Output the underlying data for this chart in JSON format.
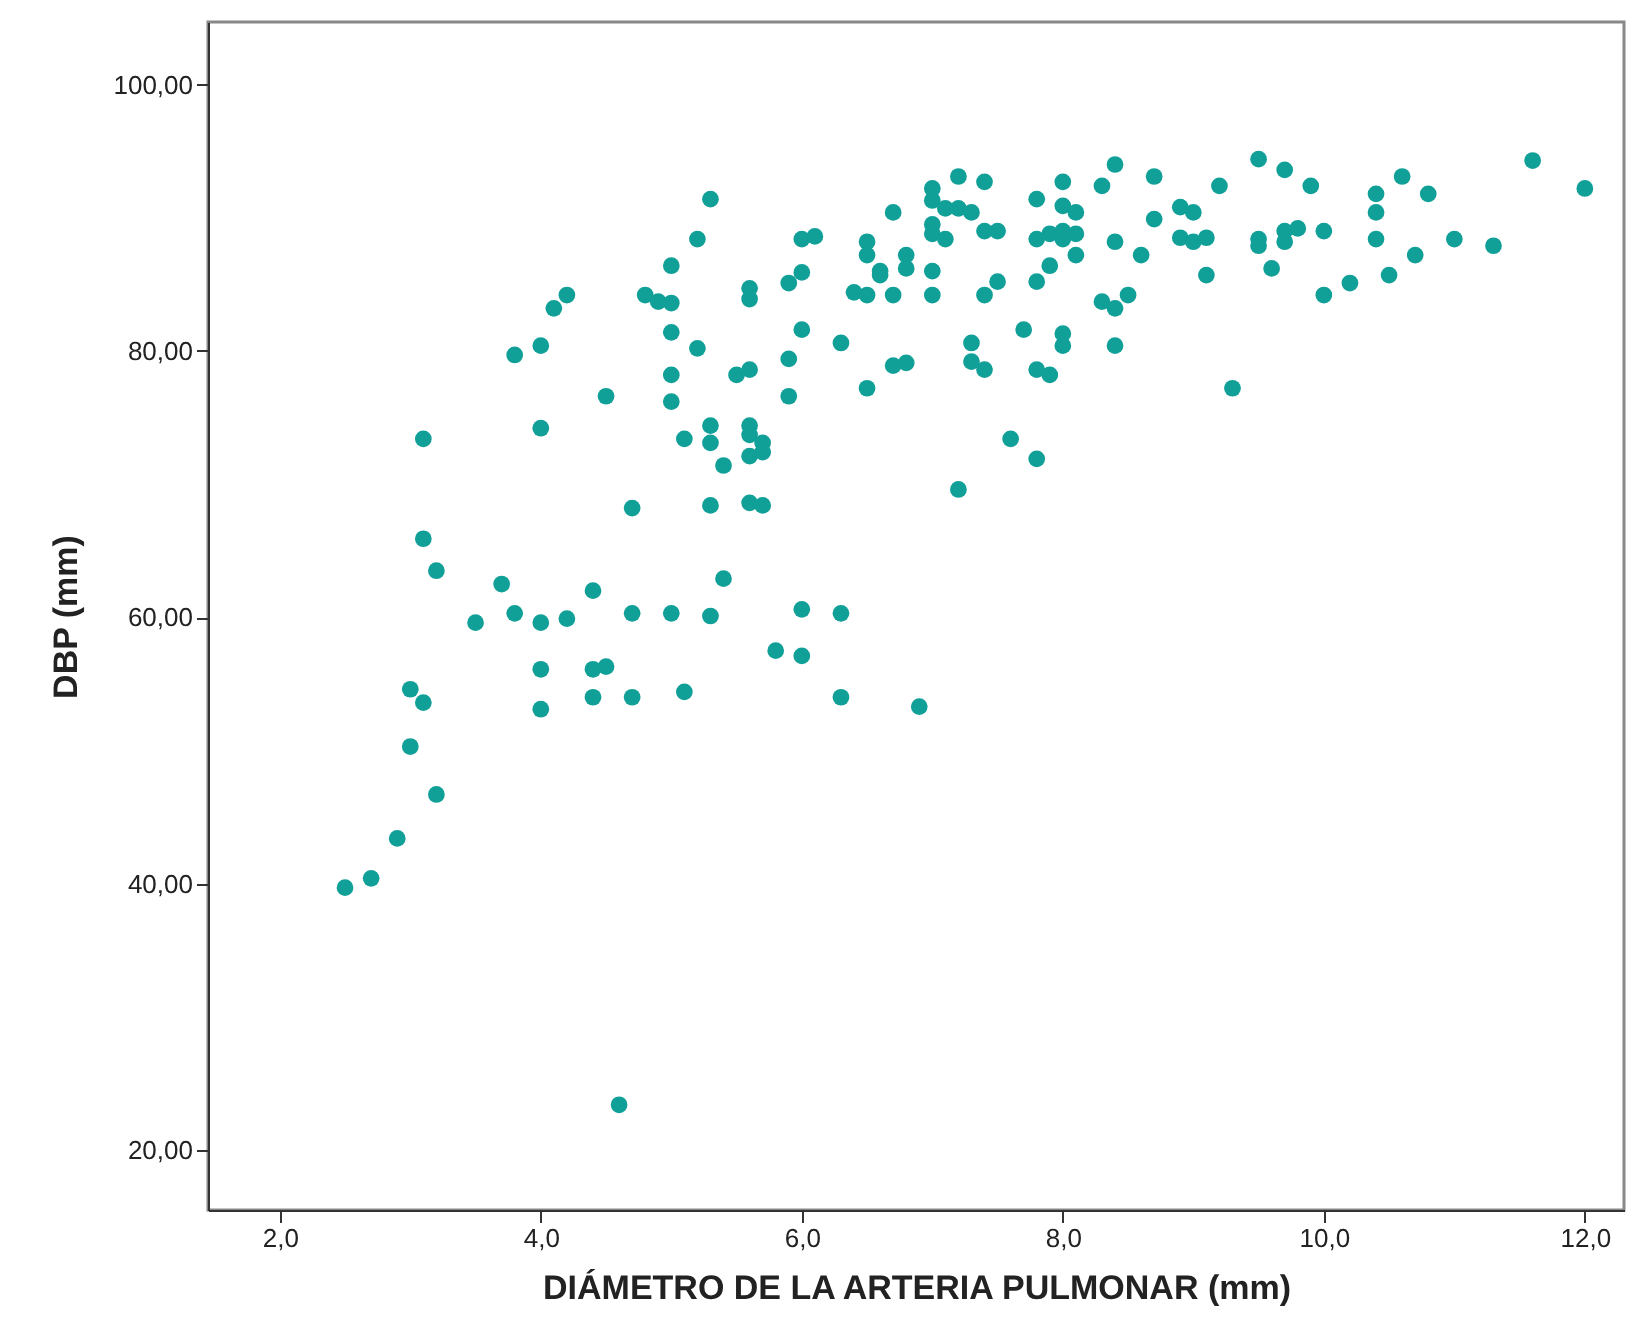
{
  "chart_data": {
    "type": "scatter",
    "xlabel": "DIÁMETRO DE LA ARTERIA PULMONAR (mm)",
    "ylabel": "DBP (mm)",
    "xlim": [
      1.45,
      12.3
    ],
    "ylim": [
      15.5,
      104.7
    ],
    "xticks": [
      {
        "value": 2,
        "label": "2,0"
      },
      {
        "value": 4,
        "label": "4,0"
      },
      {
        "value": 6,
        "label": "6,0"
      },
      {
        "value": 8,
        "label": "8,0"
      },
      {
        "value": 10,
        "label": "10,0"
      },
      {
        "value": 12,
        "label": "12,0"
      }
    ],
    "yticks": [
      {
        "value": 20,
        "label": "20,00"
      },
      {
        "value": 40,
        "label": "40,00"
      },
      {
        "value": 60,
        "label": "60,00"
      },
      {
        "value": 80,
        "label": "80,00"
      },
      {
        "value": 100,
        "label": "100,00"
      }
    ],
    "grid": false,
    "marker": "circle",
    "series": [
      {
        "color": "#10a098",
        "x": [
          5.3,
          5.2,
          5.0,
          4.2,
          4.1,
          4.8,
          4.9,
          5.0,
          5.6,
          5.6,
          6.0,
          6.1,
          5.9,
          6.0,
          6.5,
          6.5,
          6.6,
          6.7,
          6.8,
          6.8,
          6.4,
          6.5,
          6.7,
          3.8,
          4.0,
          5.0,
          5.2,
          6.0,
          6.3,
          4.5,
          5.0,
          5.0,
          5.5,
          5.6,
          5.9,
          5.9,
          6.5,
          6.7,
          6.8,
          4.0,
          3.1,
          5.1,
          5.3,
          5.3,
          5.6,
          5.6,
          5.7,
          5.6,
          5.7,
          5.4,
          4.7,
          5.3,
          5.6,
          5.7,
          3.1,
          3.2,
          3.7,
          4.4,
          5.4,
          3.5,
          3.8,
          4.0,
          4.2,
          4.7,
          5.0,
          5.3,
          6.0,
          6.3,
          4.0,
          4.4,
          4.5,
          4.0,
          4.4,
          4.7,
          5.1,
          5.8,
          6.0,
          6.3,
          6.9,
          3.0,
          3.1,
          3.0,
          3.2,
          2.9,
          2.7,
          2.5,
          4.6,
          7.0,
          7.0,
          7.2,
          7.4,
          7.0,
          7.0,
          7.1,
          7.1,
          7.2,
          7.3,
          7.4,
          7.5,
          7.8,
          7.8,
          8.0,
          8.0,
          8.1,
          7.9,
          8.0,
          8.1,
          8.1,
          8.0,
          8.3,
          8.4,
          8.7,
          8.4,
          8.6,
          8.7,
          8.9,
          9.0,
          8.9,
          9.0,
          9.1,
          9.2,
          9.5,
          9.7,
          9.9,
          9.5,
          9.5,
          9.7,
          9.8,
          9.7,
          10.0,
          10.4,
          10.4,
          10.4,
          10.6,
          10.8,
          11.0,
          11.3,
          11.6,
          12.0,
          6.6,
          7.0,
          7.0,
          7.4,
          7.5,
          7.8,
          7.9,
          8.3,
          8.4,
          8.5,
          9.1,
          9.6,
          10.0,
          10.2,
          10.5,
          10.7,
          7.3,
          7.3,
          7.4,
          7.7,
          7.8,
          7.9,
          8.0,
          8.0,
          8.4,
          9.3,
          7.6,
          7.8,
          7.2
        ],
        "values": [
          91.4,
          88.4,
          86.4,
          84.2,
          83.2,
          84.2,
          83.7,
          83.6,
          84.7,
          83.9,
          88.4,
          88.6,
          85.1,
          85.9,
          88.2,
          87.2,
          86.0,
          90.4,
          87.2,
          86.2,
          84.4,
          84.2,
          84.2,
          79.7,
          80.4,
          81.4,
          80.2,
          81.6,
          80.6,
          76.6,
          78.2,
          76.2,
          78.2,
          78.6,
          79.4,
          76.6,
          77.2,
          78.9,
          79.1,
          74.2,
          73.4,
          73.4,
          74.4,
          73.1,
          74.4,
          73.7,
          73.1,
          72.1,
          72.4,
          71.4,
          68.2,
          68.4,
          68.6,
          68.4,
          65.9,
          63.5,
          62.5,
          62.0,
          62.9,
          59.6,
          60.3,
          59.6,
          59.9,
          60.3,
          60.3,
          60.1,
          60.6,
          60.3,
          56.1,
          56.1,
          56.3,
          53.1,
          54.0,
          54.0,
          54.4,
          57.5,
          57.1,
          54.0,
          53.3,
          54.6,
          53.6,
          50.3,
          46.7,
          43.4,
          40.4,
          39.7,
          23.4,
          92.2,
          91.3,
          93.1,
          92.7,
          89.5,
          88.8,
          88.4,
          90.7,
          90.7,
          90.4,
          89.0,
          89.0,
          91.4,
          88.4,
          92.7,
          90.9,
          90.4,
          88.8,
          89.0,
          88.8,
          87.2,
          88.4,
          92.4,
          94.0,
          93.1,
          88.2,
          87.2,
          89.9,
          90.8,
          90.4,
          88.5,
          88.2,
          88.5,
          92.4,
          94.4,
          93.6,
          92.4,
          88.4,
          87.9,
          89.0,
          89.2,
          88.2,
          89.0,
          91.8,
          90.4,
          88.4,
          93.1,
          91.8,
          88.4,
          87.9,
          94.3,
          92.2,
          85.7,
          86.0,
          84.2,
          84.2,
          85.2,
          85.2,
          86.4,
          83.7,
          83.2,
          84.2,
          85.7,
          86.2,
          84.2,
          85.1,
          85.7,
          87.2,
          80.6,
          79.2,
          78.6,
          81.6,
          78.6,
          78.2,
          81.3,
          80.4,
          80.4,
          77.2,
          73.4,
          71.9,
          69.6
        ]
      }
    ]
  }
}
